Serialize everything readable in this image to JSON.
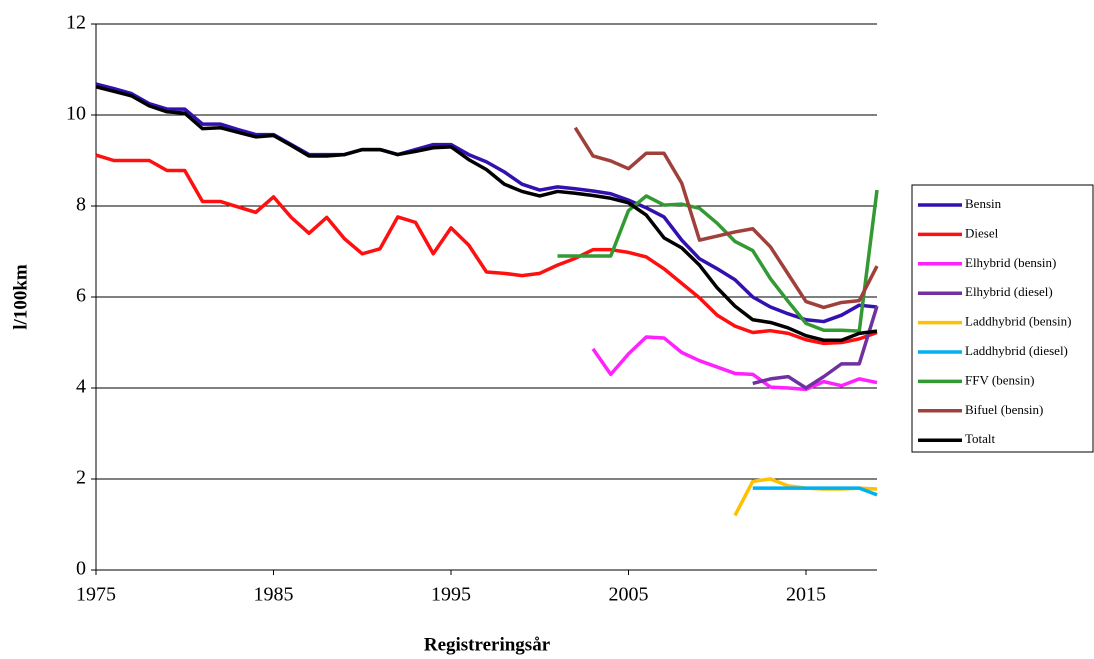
{
  "chart_data": {
    "type": "line",
    "y_label": "l/100km",
    "x_label": "Registreringsår",
    "x": [
      1975,
      1976,
      1977,
      1978,
      1979,
      1980,
      1981,
      1982,
      1983,
      1984,
      1985,
      1986,
      1987,
      1988,
      1989,
      1990,
      1991,
      1992,
      1993,
      1994,
      1995,
      1996,
      1997,
      1998,
      1999,
      2000,
      2001,
      2002,
      2003,
      2004,
      2005,
      2006,
      2007,
      2008,
      2009,
      2010,
      2011,
      2012,
      2013,
      2014,
      2015,
      2016,
      2017,
      2018,
      2019
    ],
    "xlim": [
      1975,
      2019
    ],
    "xticks": [
      1975,
      1985,
      1995,
      2005,
      2015
    ],
    "ylim": [
      0,
      12
    ],
    "yticks": [
      0,
      2,
      4,
      6,
      8,
      10,
      12
    ],
    "grid": true,
    "legend": "right",
    "series": [
      {
        "name": "Bensin",
        "color": "#3311b0",
        "values": [
          10.68,
          10.58,
          10.47,
          10.25,
          10.13,
          10.13,
          9.8,
          9.8,
          9.68,
          9.57,
          9.57,
          9.35,
          9.13,
          9.13,
          9.13,
          9.24,
          9.24,
          9.13,
          9.24,
          9.35,
          9.35,
          9.13,
          8.97,
          8.75,
          8.48,
          8.35,
          8.42,
          8.38,
          8.33,
          8.27,
          8.13,
          7.96,
          7.76,
          7.25,
          6.84,
          6.62,
          6.38,
          6.0,
          5.78,
          5.63,
          5.5,
          5.46,
          5.6,
          5.82,
          5.78
        ]
      },
      {
        "name": "Diesel",
        "color": "#ff1010",
        "values": [
          9.12,
          9.0,
          9.0,
          9.0,
          8.78,
          8.78,
          8.1,
          8.1,
          7.98,
          7.86,
          8.2,
          7.75,
          7.4,
          7.75,
          7.28,
          6.95,
          7.06,
          7.76,
          7.64,
          6.95,
          7.52,
          7.14,
          6.55,
          6.52,
          6.47,
          6.52,
          6.7,
          6.85,
          7.04,
          7.04,
          6.98,
          6.88,
          6.62,
          6.3,
          5.98,
          5.6,
          5.36,
          5.22,
          5.26,
          5.2,
          5.06,
          4.98,
          5.0,
          5.08,
          5.22
        ]
      },
      {
        "name": "Elhybrid (bensin)",
        "color": "#ff22ff",
        "values": [
          null,
          null,
          null,
          null,
          null,
          null,
          null,
          null,
          null,
          null,
          null,
          null,
          null,
          null,
          null,
          null,
          null,
          null,
          null,
          null,
          null,
          null,
          null,
          null,
          null,
          null,
          null,
          null,
          4.86,
          4.3,
          4.75,
          5.12,
          5.1,
          4.78,
          4.6,
          4.46,
          4.32,
          4.3,
          4.02,
          4.0,
          3.97,
          4.14,
          4.05,
          4.2,
          4.12
        ]
      },
      {
        "name": "Elhybrid (diesel)",
        "color": "#7030a0",
        "values": [
          null,
          null,
          null,
          null,
          null,
          null,
          null,
          null,
          null,
          null,
          null,
          null,
          null,
          null,
          null,
          null,
          null,
          null,
          null,
          null,
          null,
          null,
          null,
          null,
          null,
          null,
          null,
          null,
          null,
          null,
          null,
          null,
          null,
          null,
          null,
          null,
          null,
          4.1,
          4.2,
          4.25,
          4.0,
          4.25,
          4.53,
          4.53,
          5.8
        ]
      },
      {
        "name": "Laddhybrid (bensin)",
        "color": "#ffc000",
        "values": [
          null,
          null,
          null,
          null,
          null,
          null,
          null,
          null,
          null,
          null,
          null,
          null,
          null,
          null,
          null,
          null,
          null,
          null,
          null,
          null,
          null,
          null,
          null,
          null,
          null,
          null,
          null,
          null,
          null,
          null,
          null,
          null,
          null,
          null,
          null,
          null,
          1.2,
          1.95,
          2.0,
          1.85,
          1.8,
          1.78,
          1.78,
          1.8,
          1.78
        ]
      },
      {
        "name": "Laddhybrid (diesel)",
        "color": "#00b0f0",
        "values": [
          null,
          null,
          null,
          null,
          null,
          null,
          null,
          null,
          null,
          null,
          null,
          null,
          null,
          null,
          null,
          null,
          null,
          null,
          null,
          null,
          null,
          null,
          null,
          null,
          null,
          null,
          null,
          null,
          null,
          null,
          null,
          null,
          null,
          null,
          null,
          null,
          null,
          1.8,
          1.8,
          1.8,
          1.8,
          1.8,
          1.8,
          1.8,
          1.65
        ]
      },
      {
        "name": "FFV (bensin)",
        "color": "#339933",
        "values": [
          null,
          null,
          null,
          null,
          null,
          null,
          null,
          null,
          null,
          null,
          null,
          null,
          null,
          null,
          null,
          null,
          null,
          null,
          null,
          null,
          null,
          null,
          null,
          null,
          null,
          null,
          6.9,
          6.9,
          6.9,
          6.9,
          7.9,
          8.22,
          8.02,
          8.04,
          7.95,
          7.62,
          7.22,
          7.02,
          6.4,
          5.9,
          5.42,
          5.27,
          5.27,
          5.25,
          8.35
        ]
      },
      {
        "name": "Bifuel (bensin)",
        "color": "#a0403a",
        "values": [
          null,
          null,
          null,
          null,
          null,
          null,
          null,
          null,
          null,
          null,
          null,
          null,
          null,
          null,
          null,
          null,
          null,
          null,
          null,
          null,
          null,
          null,
          null,
          null,
          null,
          null,
          null,
          9.72,
          9.1,
          8.99,
          8.82,
          9.16,
          9.16,
          8.5,
          7.25,
          7.34,
          7.43,
          7.5,
          7.1,
          6.5,
          5.9,
          5.77,
          5.88,
          5.92,
          6.68
        ]
      },
      {
        "name": "Totalt",
        "color": "#000000",
        "values": [
          10.62,
          10.52,
          10.42,
          10.2,
          10.07,
          10.04,
          9.7,
          9.72,
          9.62,
          9.52,
          9.55,
          9.33,
          9.1,
          9.1,
          9.13,
          9.24,
          9.24,
          9.13,
          9.2,
          9.28,
          9.3,
          9.02,
          8.8,
          8.48,
          8.32,
          8.22,
          8.32,
          8.28,
          8.23,
          8.17,
          8.07,
          7.8,
          7.3,
          7.08,
          6.7,
          6.2,
          5.8,
          5.5,
          5.44,
          5.32,
          5.15,
          5.05,
          5.05,
          5.2,
          5.25
        ]
      }
    ]
  }
}
